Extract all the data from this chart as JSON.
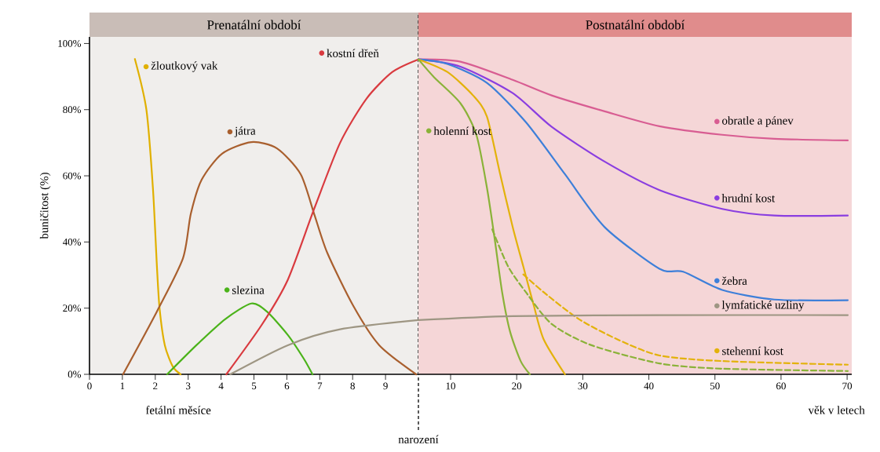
{
  "chart_data": [
    {
      "type": "line",
      "title": "Prenatální období",
      "xlabel": "fetální měsíce",
      "ylabel": "buničitost (%)",
      "xlim": [
        0,
        10
      ],
      "xticks": [
        0,
        1,
        2,
        3,
        4,
        5,
        6,
        7,
        8,
        9
      ],
      "legend": "top left",
      "ylim": [
        0,
        102
      ],
      "yticks": [
        {
          "value": 0,
          "label": "0%"
        },
        {
          "value": 20,
          "label": "20%"
        },
        {
          "value": 40,
          "label": "40%"
        },
        {
          "value": 60,
          "label": "60%"
        },
        {
          "value": 80,
          "label": "80%"
        },
        {
          "value": 100,
          "label": "100%"
        }
      ],
      "ref_lines": [
        {
          "axis": "x",
          "value": 10,
          "label": "narození",
          "line_style": "dashed",
          "color": "#333333"
        }
      ],
      "series": [
        {
          "name": "žloutkový vak",
          "color": "#e0b000",
          "x": [
            1.38,
            1.73,
            1.93,
            2.05,
            2.13,
            2.29,
            2.53,
            2.77
          ],
          "values": [
            95.3,
            80,
            56,
            32.6,
            20,
            8.8,
            2.4,
            0
          ]
        },
        {
          "name": "játra",
          "color": "#a95f2e",
          "x": [
            1.02,
            2.05,
            2.84,
            3.08,
            3.41,
            4.03,
            4.92,
            5.7,
            6.42,
            6.83,
            7.23,
            8.02,
            8.81,
            9.93
          ],
          "values": [
            0,
            19,
            35,
            48.5,
            58.8,
            66.7,
            70.2,
            68.3,
            60.5,
            48.5,
            36.7,
            20.7,
            8.8,
            0
          ]
        },
        {
          "name": "slezina",
          "color": "#4bb31a",
          "x": [
            2.36,
            3.25,
            4.13,
            4.92,
            5.39,
            6.03,
            6.51,
            6.78
          ],
          "values": [
            0,
            8.8,
            16.7,
            21.4,
            19,
            11.9,
            4.8,
            0
          ]
        },
        {
          "name": "kostní dřeň",
          "color": "#d93a3f",
          "x": [
            4.16,
            5.24,
            6.03,
            6.83,
            7.62,
            8.42,
            9.21,
            10
          ],
          "values": [
            0,
            15,
            28.6,
            50,
            70,
            83.3,
            91.4,
            95.2
          ]
        },
        {
          "color": "#9e9683",
          "x": [
            4.28,
            6.03,
            7.62,
            10
          ],
          "values": [
            0,
            8.8,
            13.6,
            16.4
          ]
        }
      ]
    },
    {
      "type": "line",
      "title": "Postnatální období",
      "xlabel": "věk v letech",
      "tick_labels": "x",
      "xlim": [
        5.13,
        70.7
      ],
      "xticks": [
        10,
        20,
        30,
        40,
        50,
        60,
        70
      ],
      "legend": "right",
      "ylim": [
        0,
        102
      ],
      "series": [
        {
          "name": "obratle a pánev",
          "color": "#d85d92",
          "x": [
            5.13,
            11.5,
            19.4,
            25.3,
            33.3,
            41.6,
            51.1,
            59,
            70.1
          ],
          "values": [
            95.2,
            94.5,
            89,
            84.3,
            79.5,
            75,
            72.4,
            71.2,
            70.7
          ]
        },
        {
          "name": "hrudní kost",
          "color": "#8a3ee0",
          "x": [
            5.13,
            11.5,
            19.4,
            25.3,
            33.3,
            41.6,
            51.1,
            59,
            70.1
          ],
          "values": [
            95.2,
            93,
            85,
            74.8,
            64.3,
            55.7,
            50,
            48,
            48
          ]
        },
        {
          "name": "žebra",
          "color": "#3d7fd9",
          "x": [
            5.13,
            9.5,
            15.5,
            21.4,
            27.3,
            33.3,
            41.6,
            45.2,
            51.1,
            59,
            70.1
          ],
          "values": [
            95.2,
            93.8,
            88.1,
            76.2,
            60.5,
            44.5,
            31.9,
            31,
            25.5,
            22.6,
            22.4
          ]
        },
        {
          "name": "stehenní kost",
          "color": "#e3b20b",
          "x": [
            5.13,
            9.5,
            13.4,
            15.5,
            17.5,
            19.4,
            21,
            22.6,
            24.1,
            27.3
          ],
          "values": [
            95.2,
            91.4,
            84.3,
            77.9,
            60.5,
            44.5,
            32.6,
            20.7,
            10.5,
            0
          ]
        },
        {
          "color": "#e3b20b",
          "line_style": "dashed",
          "x": [
            21,
            24.1,
            29.4,
            35.3,
            41.6,
            51.1,
            70.1
          ],
          "values": [
            30.2,
            24.8,
            16.7,
            10.5,
            5.7,
            4,
            2.9
          ]
        },
        {
          "name": "holenní kost",
          "color": "#8ab238",
          "x": [
            5.13,
            7.5,
            11.5,
            13.9,
            15.5,
            16.7,
            17.8,
            19,
            20.6,
            22
          ],
          "values": [
            95.2,
            89.8,
            81.9,
            72.4,
            56.4,
            40.5,
            24.8,
            12.9,
            4,
            0
          ]
        },
        {
          "color": "#8ab238",
          "line_style": "dashed",
          "x": [
            16.3,
            18.7,
            21.4,
            25.3,
            31.3,
            41.6,
            51.1,
            70.1
          ],
          "values": [
            43.8,
            32.6,
            24.8,
            15.2,
            8.8,
            3.3,
            1.7,
            1
          ]
        },
        {
          "name": "lymfatické uzliny",
          "color": "#9e9683",
          "x": [
            5.13,
            19.4,
            41.6,
            70.1
          ],
          "values": [
            16.4,
            17.6,
            17.9,
            17.9
          ]
        }
      ]
    }
  ]
}
